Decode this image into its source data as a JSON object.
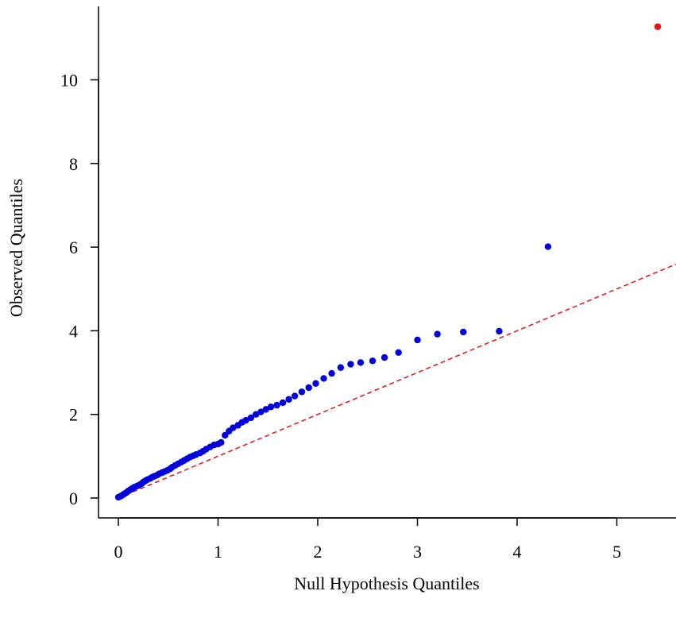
{
  "chart_data": {
    "type": "scatter",
    "title": "",
    "xlabel": "Null Hypothesis Quantiles",
    "ylabel": "Observed Quantiles",
    "xlim": [
      0,
      5.6
    ],
    "ylim": [
      0,
      11.3
    ],
    "x_ticks": [
      0,
      1,
      2,
      3,
      4,
      5
    ],
    "y_ticks": [
      0,
      2,
      4,
      6,
      8,
      10
    ],
    "x_tick_labels": [
      "0",
      "1",
      "2",
      "3",
      "4",
      "5"
    ],
    "y_tick_labels": [
      "0",
      "2",
      "4",
      "6",
      "8",
      "10"
    ],
    "grid": false,
    "legend": "none",
    "colors": {
      "points": "#0000dd",
      "outlier": "#ee1111",
      "reference_line": "#dd2222"
    },
    "reference_line": {
      "style": "dashed",
      "intercept": 0,
      "slope": 1.0
    },
    "series": [
      {
        "values": [
          [
            0.0,
            0.02
          ],
          [
            0.02,
            0.04
          ],
          [
            0.04,
            0.07
          ],
          [
            0.06,
            0.1
          ],
          [
            0.08,
            0.13
          ],
          [
            0.1,
            0.17
          ],
          [
            0.12,
            0.2
          ],
          [
            0.14,
            0.23
          ],
          [
            0.16,
            0.26
          ],
          [
            0.19,
            0.29
          ],
          [
            0.21,
            0.31
          ],
          [
            0.23,
            0.34
          ],
          [
            0.25,
            0.38
          ],
          [
            0.27,
            0.41
          ],
          [
            0.29,
            0.44
          ],
          [
            0.32,
            0.47
          ],
          [
            0.34,
            0.5
          ],
          [
            0.36,
            0.52
          ],
          [
            0.39,
            0.55
          ],
          [
            0.41,
            0.58
          ],
          [
            0.44,
            0.61
          ],
          [
            0.46,
            0.63
          ],
          [
            0.49,
            0.66
          ],
          [
            0.52,
            0.7
          ],
          [
            0.54,
            0.74
          ],
          [
            0.57,
            0.78
          ],
          [
            0.6,
            0.82
          ],
          [
            0.63,
            0.86
          ],
          [
            0.66,
            0.9
          ],
          [
            0.69,
            0.94
          ],
          [
            0.72,
            0.98
          ],
          [
            0.75,
            1.01
          ],
          [
            0.78,
            1.04
          ],
          [
            0.82,
            1.08
          ],
          [
            0.85,
            1.12
          ],
          [
            0.88,
            1.17
          ],
          [
            0.92,
            1.22
          ],
          [
            0.96,
            1.27
          ],
          [
            1.0,
            1.29
          ],
          [
            1.03,
            1.33
          ],
          [
            1.07,
            1.5
          ],
          [
            1.11,
            1.6
          ],
          [
            1.15,
            1.68
          ],
          [
            1.2,
            1.74
          ],
          [
            1.24,
            1.81
          ],
          [
            1.28,
            1.86
          ],
          [
            1.33,
            1.92
          ],
          [
            1.38,
            2.0
          ],
          [
            1.43,
            2.06
          ],
          [
            1.48,
            2.12
          ],
          [
            1.53,
            2.18
          ],
          [
            1.59,
            2.22
          ],
          [
            1.65,
            2.28
          ],
          [
            1.71,
            2.36
          ],
          [
            1.77,
            2.44
          ],
          [
            1.84,
            2.54
          ],
          [
            1.91,
            2.64
          ],
          [
            1.98,
            2.74
          ],
          [
            2.06,
            2.86
          ],
          [
            2.14,
            2.98
          ],
          [
            2.23,
            3.12
          ],
          [
            2.33,
            3.2
          ],
          [
            2.43,
            3.24
          ],
          [
            2.55,
            3.28
          ],
          [
            2.67,
            3.36
          ],
          [
            2.81,
            3.48
          ],
          [
            3.0,
            3.78
          ],
          [
            3.2,
            3.92
          ],
          [
            3.46,
            3.97
          ],
          [
            3.82,
            3.99
          ],
          [
            4.31,
            6.01
          ]
        ]
      },
      {
        "values": [
          [
            5.41,
            11.27
          ]
        ]
      }
    ]
  }
}
